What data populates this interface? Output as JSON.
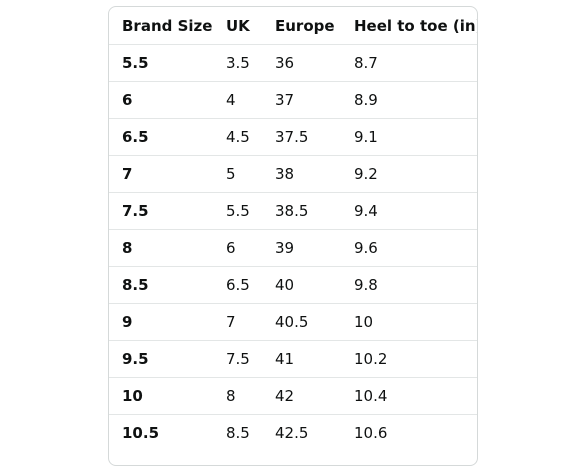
{
  "table": {
    "headers": [
      "Brand Size",
      "UK",
      "Europe",
      "Heel to toe (in)"
    ],
    "rows": [
      [
        "5.5",
        "3.5",
        "36",
        "8.7"
      ],
      [
        "6",
        "4",
        "37",
        "8.9"
      ],
      [
        "6.5",
        "4.5",
        "37.5",
        "9.1"
      ],
      [
        "7",
        "5",
        "38",
        "9.2"
      ],
      [
        "7.5",
        "5.5",
        "38.5",
        "9.4"
      ],
      [
        "8",
        "6",
        "39",
        "9.6"
      ],
      [
        "8.5",
        "6.5",
        "40",
        "9.8"
      ],
      [
        "9",
        "7",
        "40.5",
        "10"
      ],
      [
        "9.5",
        "7.5",
        "41",
        "10.2"
      ],
      [
        "10",
        "8",
        "42",
        "10.4"
      ],
      [
        "10.5",
        "8.5",
        "42.5",
        "10.6"
      ]
    ]
  }
}
